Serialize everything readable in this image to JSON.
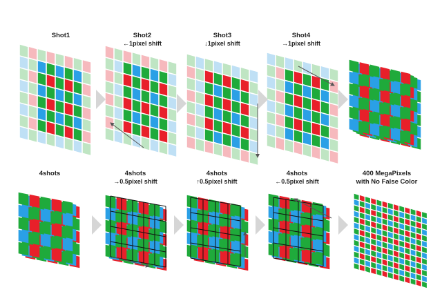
{
  "colors": {
    "red": "#e8202a",
    "green": "#1faa3b",
    "blue": "#2aa0e6",
    "faded_red": "#f6b9bd",
    "faded_green": "#bfe5c3",
    "faded_blue": "#bfe0f5",
    "grid_line": "#111111",
    "step_arrow": "#d6d6d6",
    "shift_arrow": "#555555"
  },
  "row1": {
    "shot1": {
      "title": "Shot1"
    },
    "shot2": {
      "title": "Shot2",
      "subtitle": "←1pixel shift"
    },
    "shot3": {
      "title": "Shot3",
      "subtitle": "↓1pixel shift"
    },
    "shot4": {
      "title": "Shot4",
      "subtitle": "→1pixel shift"
    }
  },
  "row2": {
    "s1": {
      "title": "4shots"
    },
    "s2": {
      "title": "4shots",
      "subtitle": "→0.5pixel shift"
    },
    "s3": {
      "title": "4shots",
      "subtitle": "↑0.5pixel shift"
    },
    "s4": {
      "title": "4shots",
      "subtitle": "←0.5pixel shift"
    },
    "result": {
      "title": "400 MegaPixels",
      "subtitle": "with No False Color"
    }
  },
  "icons": {
    "step_arrow": "chevron-right-icon",
    "shift_arrow": "long-arrow-icon"
  }
}
